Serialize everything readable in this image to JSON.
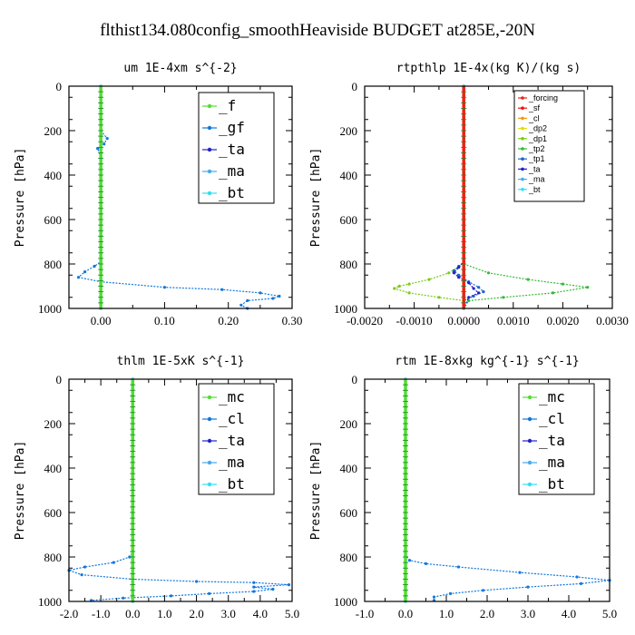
{
  "figure_title": "flthist134.080config_smoothHeaviside  BUDGET at285E,-20N",
  "chart_data": [
    {
      "type": "line",
      "title": "um   1E-4xm s^{-2}",
      "ylabel": "Pressure [hPa]",
      "xlim": [
        -0.05,
        0.3
      ],
      "ylim": [
        1000,
        0
      ],
      "xticks": [
        "0.00",
        "0.10",
        "0.20",
        "0.30"
      ],
      "xtick_values": [
        0,
        0.1,
        0.2,
        0.3
      ],
      "yticks": [
        "0",
        "200",
        "400",
        "600",
        "800",
        "1000"
      ],
      "legend_size": "big",
      "series": [
        {
          "name": "_f",
          "color": "#55dd33",
          "points": [
            [
              0,
              0
            ],
            [
              0,
              100
            ],
            [
              0,
              200
            ],
            [
              0,
              300
            ],
            [
              0,
              400
            ],
            [
              0,
              500
            ],
            [
              0,
              600
            ],
            [
              0,
              700
            ],
            [
              0,
              800
            ],
            [
              0,
              900
            ],
            [
              0,
              1000
            ]
          ]
        },
        {
          "name": "_gf",
          "color": "#1177dd",
          "points": [
            [
              0,
              0
            ],
            [
              0,
              100
            ],
            [
              0,
              200
            ],
            [
              0.01,
              235
            ],
            [
              0.005,
              260
            ],
            [
              -0.005,
              280
            ],
            [
              0,
              320
            ],
            [
              0,
              500
            ],
            [
              0,
              700
            ],
            [
              0,
              790
            ],
            [
              -0.01,
              810
            ],
            [
              -0.025,
              835
            ],
            [
              -0.035,
              860
            ],
            [
              0,
              880
            ],
            [
              0.1,
              905
            ],
            [
              0.19,
              915
            ],
            [
              0.25,
              930
            ],
            [
              0.28,
              945
            ],
            [
              0.27,
              955
            ],
            [
              0.23,
              965
            ],
            [
              0.22,
              985
            ],
            [
              0.23,
              1000
            ]
          ]
        },
        {
          "name": "_ta",
          "color": "#2222cc",
          "points": [
            [
              0,
              0
            ],
            [
              0,
              100
            ],
            [
              0,
              200
            ],
            [
              0,
              300
            ],
            [
              0,
              400
            ],
            [
              0,
              500
            ],
            [
              0,
              600
            ],
            [
              0,
              700
            ],
            [
              0,
              800
            ],
            [
              0,
              900
            ],
            [
              0,
              1000
            ]
          ]
        },
        {
          "name": "_ma",
          "color": "#44aaee",
          "points": [
            [
              0,
              0
            ],
            [
              0,
              100
            ],
            [
              0,
              200
            ],
            [
              0,
              300
            ],
            [
              0,
              400
            ],
            [
              0,
              500
            ],
            [
              0,
              600
            ],
            [
              0,
              700
            ],
            [
              0,
              800
            ],
            [
              0,
              900
            ],
            [
              0,
              1000
            ]
          ]
        },
        {
          "name": "_bt",
          "color": "#33ddee",
          "points": [
            [
              0,
              0
            ],
            [
              0,
              100
            ],
            [
              0,
              200
            ],
            [
              0,
              300
            ],
            [
              0,
              400
            ],
            [
              0,
              500
            ],
            [
              0,
              600
            ],
            [
              0,
              700
            ],
            [
              0,
              800
            ],
            [
              0,
              900
            ],
            [
              0,
              1000
            ]
          ]
        }
      ]
    },
    {
      "type": "line",
      "title": "rtpthlp   1E-4x(kg K)/(kg s)",
      "ylabel": "Pressure [hPa]",
      "xlim": [
        -0.002,
        0.003
      ],
      "ylim": [
        1000,
        0
      ],
      "xticks": [
        "-0.0020",
        "-0.0010",
        "0.0000",
        "0.0010",
        "0.0020",
        "0.0030"
      ],
      "xtick_values": [
        -0.002,
        -0.001,
        0,
        0.001,
        0.002,
        0.003
      ],
      "yticks": [
        "0",
        "200",
        "400",
        "600",
        "800",
        "1000"
      ],
      "legend_size": "small",
      "series": [
        {
          "name": "_forcing",
          "color": "#ee2211",
          "points": [
            [
              0,
              0
            ],
            [
              0,
              100
            ],
            [
              0,
              200
            ],
            [
              0,
              300
            ],
            [
              0,
              400
            ],
            [
              0,
              500
            ],
            [
              0,
              600
            ],
            [
              0,
              700
            ],
            [
              0,
              800
            ],
            [
              0,
              900
            ],
            [
              0,
              1000
            ]
          ]
        },
        {
          "name": "_sf",
          "color": "#ee1111",
          "points": [
            [
              0,
              0
            ],
            [
              0,
              200
            ],
            [
              0,
              400
            ],
            [
              0,
              600
            ],
            [
              0,
              800
            ],
            [
              0,
              1000
            ]
          ]
        },
        {
          "name": "_cl",
          "color": "#ee9911",
          "points": [
            [
              0,
              0
            ],
            [
              0,
              200
            ],
            [
              0,
              400
            ],
            [
              0,
              600
            ],
            [
              0,
              800
            ],
            [
              0,
              1000
            ]
          ]
        },
        {
          "name": "_dp2",
          "color": "#dddd11",
          "points": [
            [
              0,
              0
            ],
            [
              0,
              200
            ],
            [
              0,
              400
            ],
            [
              0,
              600
            ],
            [
              0,
              800
            ],
            [
              0,
              1000
            ]
          ]
        },
        {
          "name": "_dp1",
          "color": "#77cc11",
          "points": [
            [
              0,
              0
            ],
            [
              0,
              800
            ],
            [
              -0.0003,
              840
            ],
            [
              -0.0007,
              870
            ],
            [
              -0.0011,
              890
            ],
            [
              -0.0013,
              900
            ],
            [
              -0.0014,
              910
            ],
            [
              -0.0011,
              930
            ],
            [
              -0.0005,
              950
            ],
            [
              0,
              965
            ],
            [
              0,
              1000
            ]
          ]
        },
        {
          "name": "_tp2",
          "color": "#33bb33",
          "points": [
            [
              0,
              0
            ],
            [
              0,
              800
            ],
            [
              0.0005,
              840
            ],
            [
              0.0013,
              870
            ],
            [
              0.002,
              890
            ],
            [
              0.0025,
              905
            ],
            [
              0.0018,
              930
            ],
            [
              0.0008,
              950
            ],
            [
              0.0001,
              965
            ],
            [
              0,
              1000
            ]
          ]
        },
        {
          "name": "_tp1",
          "color": "#2266cc",
          "points": [
            [
              0,
              0
            ],
            [
              0,
              790
            ],
            [
              -0.0001,
              810
            ],
            [
              -0.0002,
              830
            ],
            [
              -0.0001,
              850
            ],
            [
              0.0001,
              880
            ],
            [
              0.0003,
              905
            ],
            [
              0.0004,
              925
            ],
            [
              0.0002,
              945
            ],
            [
              0,
              965
            ],
            [
              0,
              1000
            ]
          ]
        },
        {
          "name": "_ta",
          "color": "#2222cc",
          "points": [
            [
              0,
              0
            ],
            [
              0,
              790
            ],
            [
              -0.0001,
              815
            ],
            [
              -0.0002,
              840
            ],
            [
              -0.0001,
              860
            ],
            [
              0.0001,
              885
            ],
            [
              0.0002,
              910
            ],
            [
              0.0003,
              930
            ],
            [
              0.0001,
              950
            ],
            [
              0,
              1000
            ]
          ]
        },
        {
          "name": "_ma",
          "color": "#44aaee",
          "points": [
            [
              0,
              0
            ],
            [
              0,
              500
            ],
            [
              0,
              1000
            ]
          ]
        },
        {
          "name": "_bt",
          "color": "#33ddee",
          "points": [
            [
              0,
              0
            ],
            [
              0,
              500
            ],
            [
              0,
              1000
            ]
          ]
        }
      ]
    },
    {
      "type": "line",
      "title": "thlm   1E-5xK s^{-1}",
      "ylabel": "Pressure [hPa]",
      "xlim": [
        -2.0,
        5.0
      ],
      "ylim": [
        1000,
        0
      ],
      "xticks": [
        "-2.0",
        "-1.0",
        "0.0",
        "1.0",
        "2.0",
        "3.0",
        "4.0",
        "5.0"
      ],
      "xtick_values": [
        -2,
        -1,
        0,
        1,
        2,
        3,
        4,
        5
      ],
      "yticks": [
        "0",
        "200",
        "400",
        "600",
        "800",
        "1000"
      ],
      "legend_size": "big",
      "series": [
        {
          "name": "_mc",
          "color": "#55dd33",
          "points": [
            [
              0,
              0
            ],
            [
              0,
              100
            ],
            [
              0,
              200
            ],
            [
              0,
              300
            ],
            [
              0,
              400
            ],
            [
              0,
              500
            ],
            [
              0,
              600
            ],
            [
              0,
              700
            ],
            [
              0,
              800
            ],
            [
              0,
              900
            ],
            [
              0,
              1000
            ]
          ]
        },
        {
          "name": "_cl",
          "color": "#1177dd",
          "points": [
            [
              0,
              0
            ],
            [
              0,
              200
            ],
            [
              0,
              400
            ],
            [
              0,
              600
            ],
            [
              0,
              780
            ],
            [
              -0.1,
              800
            ],
            [
              -0.6,
              825
            ],
            [
              -1.5,
              845
            ],
            [
              -2.0,
              860
            ],
            [
              -1.6,
              880
            ],
            [
              0,
              900
            ],
            [
              2.0,
              910
            ],
            [
              3.8,
              915
            ],
            [
              4.9,
              925
            ],
            [
              3.8,
              935
            ],
            [
              4.4,
              945
            ],
            [
              3.8,
              955
            ],
            [
              2.4,
              965
            ],
            [
              1.2,
              975
            ],
            [
              -0.3,
              985
            ],
            [
              -1.3,
              995
            ]
          ]
        },
        {
          "name": "_ta",
          "color": "#2222cc",
          "points": [
            [
              0,
              0
            ],
            [
              0,
              500
            ],
            [
              0,
              1000
            ]
          ]
        },
        {
          "name": "_ma",
          "color": "#44aaee",
          "points": [
            [
              0,
              0
            ],
            [
              0,
              500
            ],
            [
              0,
              1000
            ]
          ]
        },
        {
          "name": "_bt",
          "color": "#33ddee",
          "points": [
            [
              0,
              0
            ],
            [
              0,
              500
            ],
            [
              0,
              1000
            ]
          ]
        }
      ]
    },
    {
      "type": "line",
      "title": "rtm   1E-8xkg kg^{-1} s^{-1}",
      "ylabel": "Pressure [hPa]",
      "xlim": [
        -1.0,
        5.0
      ],
      "ylim": [
        1000,
        0
      ],
      "xticks": [
        "-1.0",
        "0.0",
        "1.0",
        "2.0",
        "3.0",
        "4.0",
        "5.0"
      ],
      "xtick_values": [
        -1,
        0,
        1,
        2,
        3,
        4,
        5
      ],
      "yticks": [
        "0",
        "200",
        "400",
        "600",
        "800",
        "1000"
      ],
      "legend_size": "big",
      "series": [
        {
          "name": "_mc",
          "color": "#55dd33",
          "points": [
            [
              0,
              0
            ],
            [
              0,
              100
            ],
            [
              0,
              200
            ],
            [
              0,
              300
            ],
            [
              0,
              400
            ],
            [
              0,
              500
            ],
            [
              0,
              600
            ],
            [
              0,
              700
            ],
            [
              0,
              800
            ],
            [
              0,
              900
            ],
            [
              0,
              1000
            ]
          ]
        },
        {
          "name": "_cl",
          "color": "#1177dd",
          "points": [
            [
              0,
              0
            ],
            [
              0,
              200
            ],
            [
              0,
              400
            ],
            [
              0,
              600
            ],
            [
              0,
              790
            ],
            [
              0.1,
              815
            ],
            [
              0.5,
              830
            ],
            [
              1.3,
              845
            ],
            [
              2.8,
              870
            ],
            [
              4.2,
              890
            ],
            [
              5.0,
              905
            ],
            [
              4.3,
              920
            ],
            [
              3.0,
              935
            ],
            [
              1.9,
              950
            ],
            [
              1.1,
              965
            ],
            [
              0.7,
              980
            ],
            [
              0.7,
              995
            ]
          ]
        },
        {
          "name": "_ta",
          "color": "#2222cc",
          "points": [
            [
              0,
              0
            ],
            [
              0,
              500
            ],
            [
              0,
              1000
            ]
          ]
        },
        {
          "name": "_ma",
          "color": "#44aaee",
          "points": [
            [
              0,
              0
            ],
            [
              0,
              500
            ],
            [
              0,
              1000
            ]
          ]
        },
        {
          "name": "_bt",
          "color": "#33ddee",
          "points": [
            [
              0,
              0
            ],
            [
              0,
              500
            ],
            [
              0,
              1000
            ]
          ]
        }
      ]
    }
  ]
}
